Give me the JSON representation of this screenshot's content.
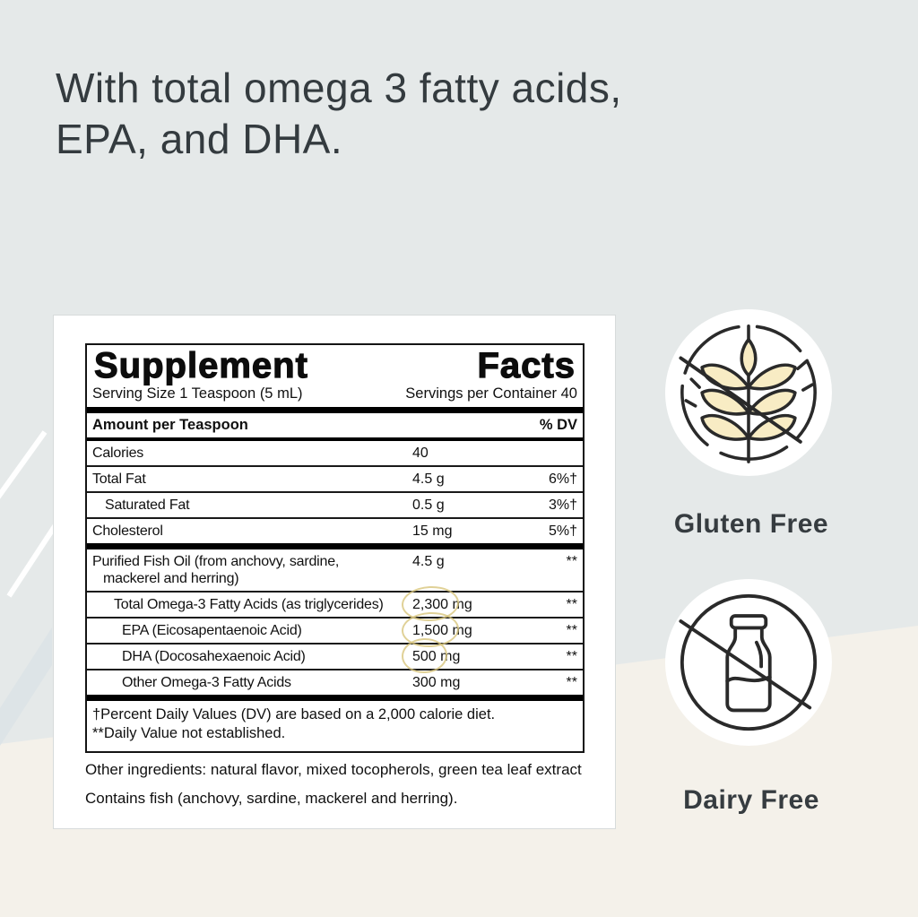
{
  "headline": {
    "line1": "With total omega 3 fatty acids,",
    "line2": "EPA, and DHA."
  },
  "panel": {
    "title_word1": "Supplement",
    "title_word2": "Facts",
    "serving_size": "Serving Size 1 Teaspoon (5 mL)",
    "servings_per_container": "Servings per Container 40",
    "col_amount": "Amount per Teaspoon",
    "col_dv": "% DV",
    "rows": [
      {
        "name": "Calories",
        "amount": "40",
        "unit": "",
        "dv": "",
        "indent": 0
      },
      {
        "name": "Total Fat",
        "amount": "4.5",
        "unit": "g",
        "dv": "6%†",
        "indent": 0
      },
      {
        "name": "Saturated Fat",
        "amount": "0.5",
        "unit": "g",
        "dv": "3%†",
        "indent": 1
      },
      {
        "name": "Cholesterol",
        "amount": "15",
        "unit": "mg",
        "dv": "5%†",
        "indent": 0
      },
      {
        "name": "Purified Fish Oil (from anchovy, sardine,",
        "name2": "mackerel and herring)",
        "amount": "4.5",
        "unit": "g",
        "dv": "**",
        "indent": 0,
        "thick_before": true
      },
      {
        "name": "Total Omega-3 Fatty Acids (as triglycerides)",
        "amount": "2,300",
        "unit": "mg",
        "dv": "**",
        "indent": 2,
        "circled": true
      },
      {
        "name": "EPA (Eicosapentaenoic Acid)",
        "amount": "1,500",
        "unit": "mg",
        "dv": "**",
        "indent": 3,
        "circled": true
      },
      {
        "name": "DHA (Docosahexaenoic Acid)",
        "amount": "500",
        "unit": "mg",
        "dv": "**",
        "indent": 3,
        "circled": true
      },
      {
        "name": "Other Omega-3 Fatty Acids",
        "amount": "300",
        "unit": "mg",
        "dv": "**",
        "indent": 3
      }
    ],
    "footnote1": "†Percent Daily Values (DV) are based on a 2,000 calorie diet.",
    "footnote2": "**Daily Value not established.",
    "other_ingredients": "Other ingredients: natural flavor, mixed tocopherols, green tea leaf extract",
    "contains": "Contains fish (anchovy, sardine, mackerel and herring)."
  },
  "badges": [
    {
      "label": "Gluten Free",
      "icon": "wheat-crossed-icon"
    },
    {
      "label": "Dairy Free",
      "icon": "milk-bottle-crossed-icon"
    }
  ],
  "colors": {
    "background": "#E5E9E9",
    "cream_band": "#F4F1EA",
    "card": "#FFFFFF",
    "ink": "#101010",
    "headline_ink": "#343B3F",
    "wheat_fill": "#F8ECC4",
    "highlight_circle": "#D8C67D"
  }
}
